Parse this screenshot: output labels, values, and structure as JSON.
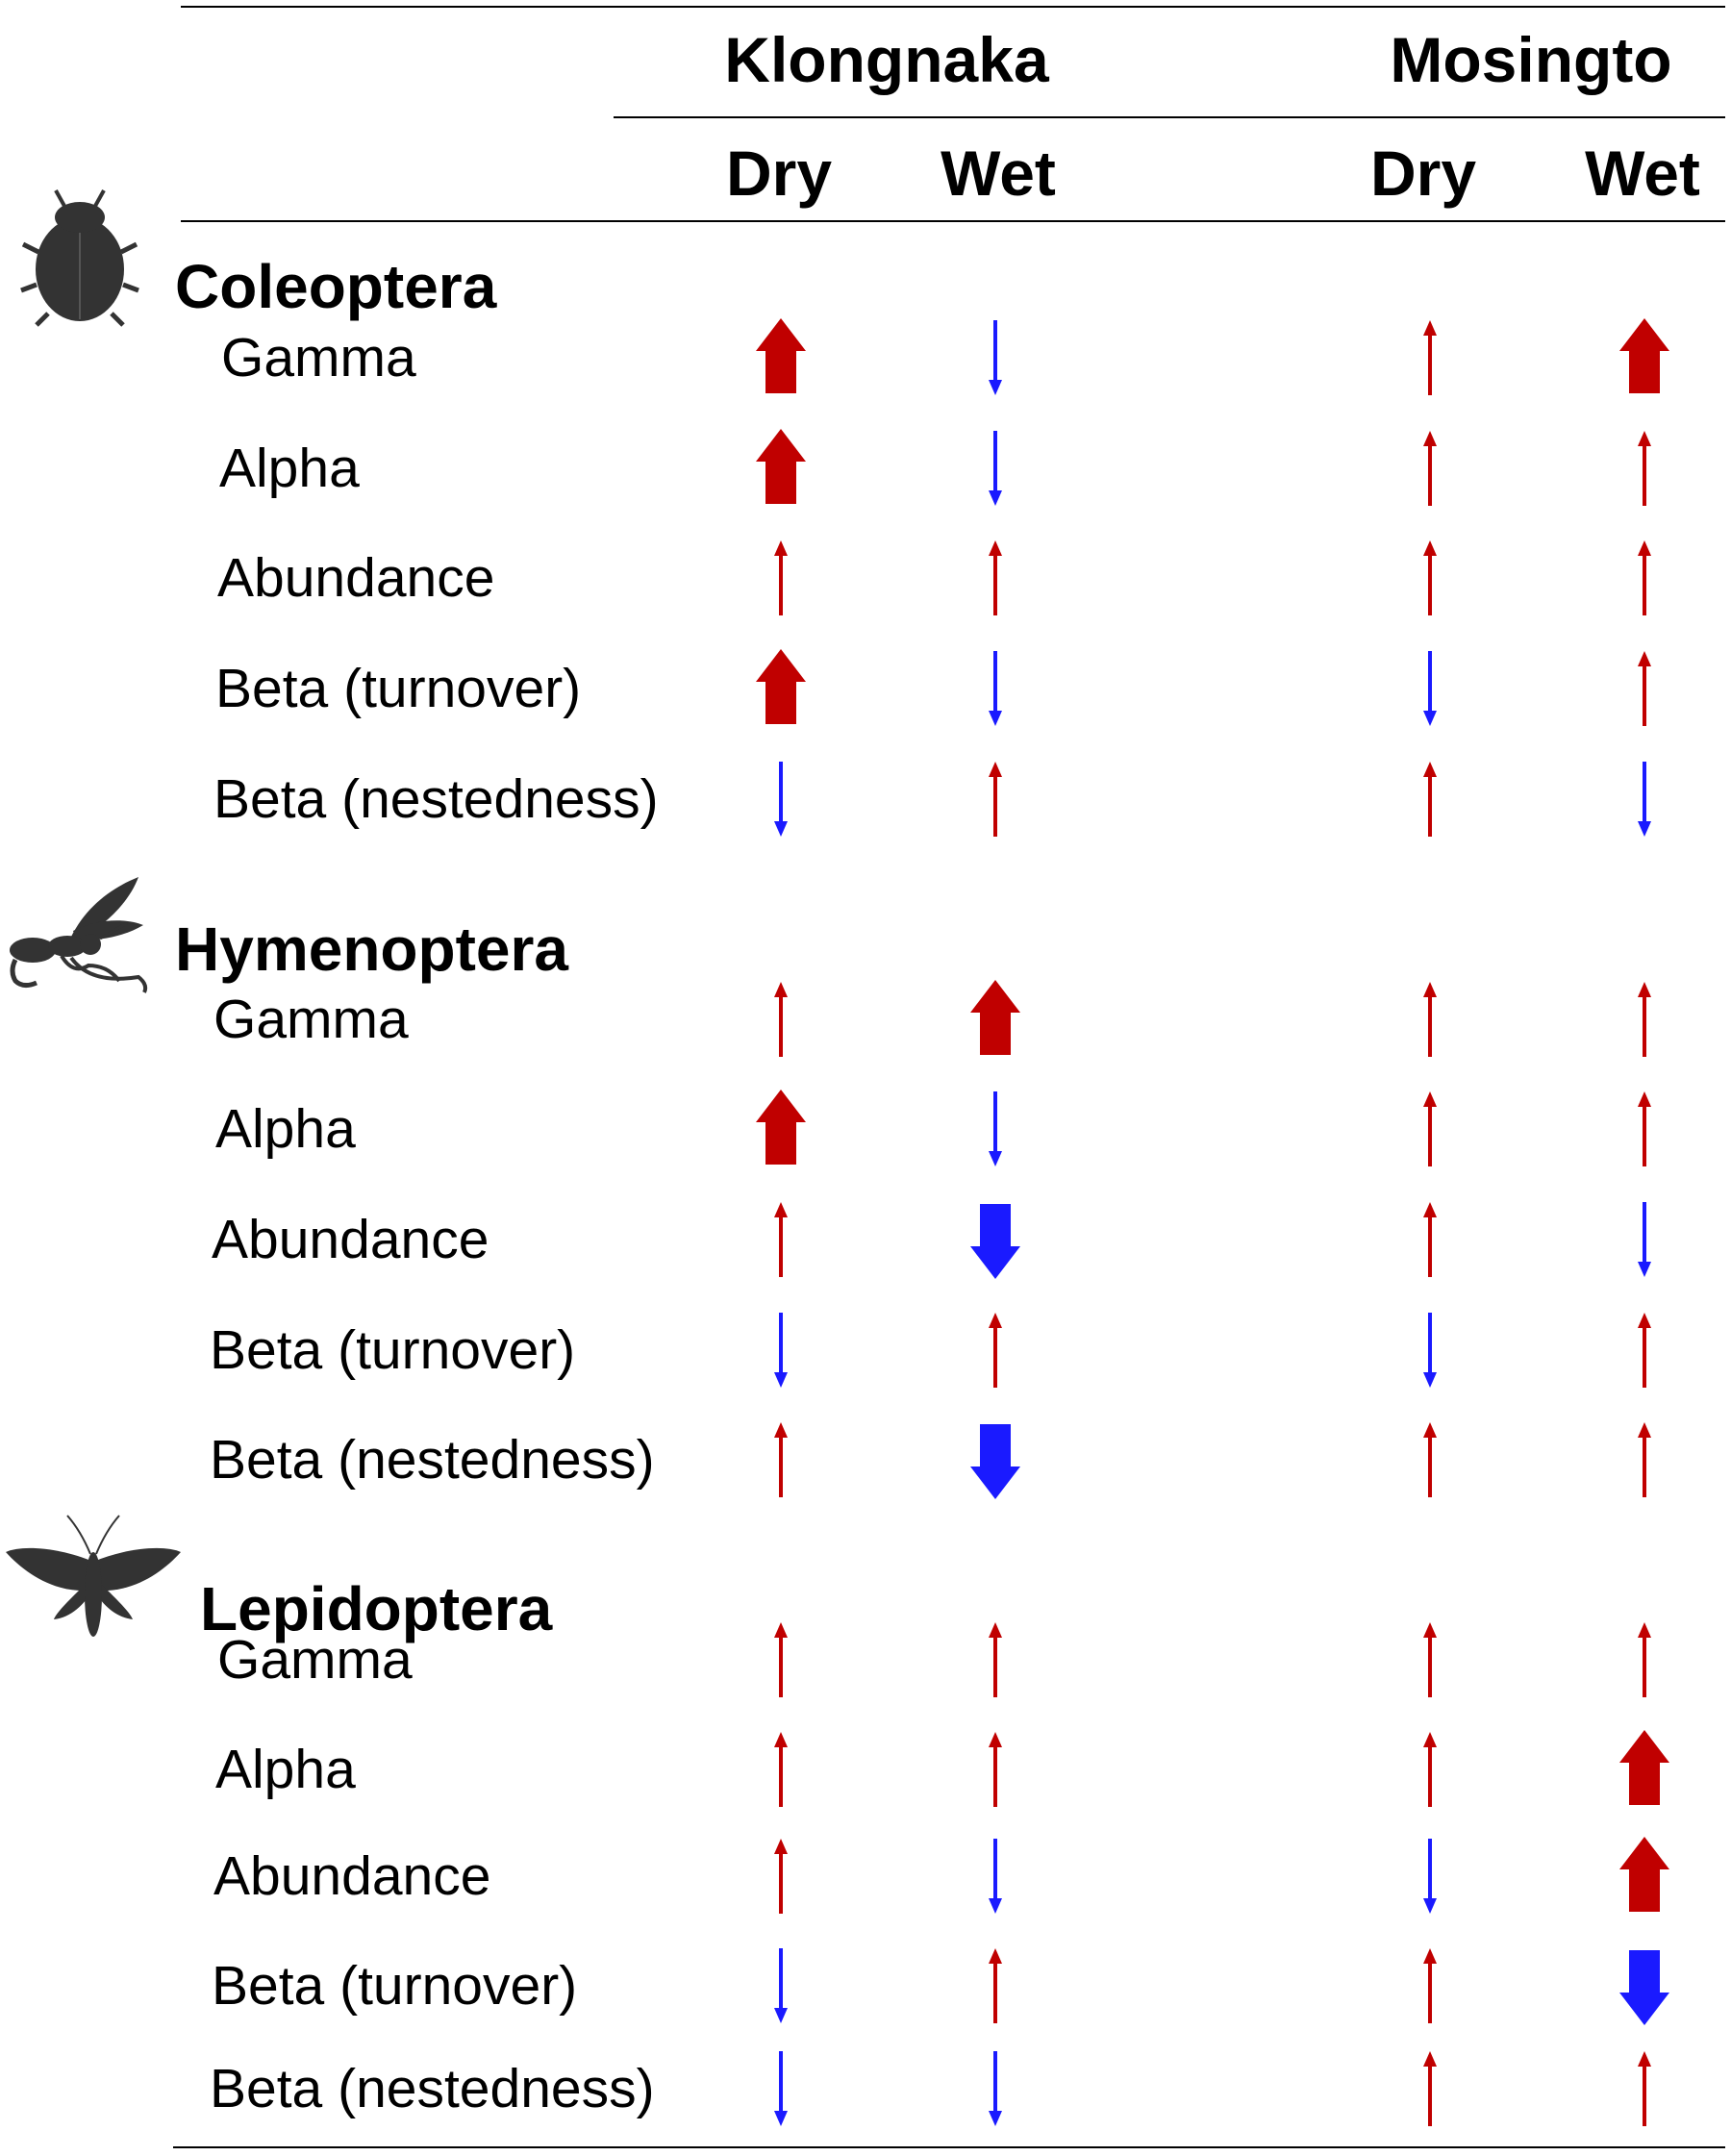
{
  "header": {
    "sites": [
      {
        "name": "Klongnaka",
        "seasons": [
          "Dry",
          "Wet"
        ]
      },
      {
        "name": "Mosingto",
        "seasons": [
          "Dry",
          "Wet"
        ]
      }
    ]
  },
  "colors": {
    "increase": "#c00000",
    "decrease": "#1a1aff",
    "silhouette": "#333333"
  },
  "groups": [
    {
      "name": "Coleoptera",
      "icon": "beetle-icon",
      "rows": [
        {
          "label": "Gamma",
          "cells": [
            {
              "dir": "up",
              "size": "large"
            },
            {
              "dir": "down",
              "size": "small"
            },
            {
              "dir": "up",
              "size": "small"
            },
            {
              "dir": "up",
              "size": "large"
            }
          ]
        },
        {
          "label": "Alpha",
          "cells": [
            {
              "dir": "up",
              "size": "large"
            },
            {
              "dir": "down",
              "size": "small"
            },
            {
              "dir": "up",
              "size": "small"
            },
            {
              "dir": "up",
              "size": "small"
            }
          ]
        },
        {
          "label": "Abundance",
          "cells": [
            {
              "dir": "up",
              "size": "small"
            },
            {
              "dir": "up",
              "size": "small"
            },
            {
              "dir": "up",
              "size": "small"
            },
            {
              "dir": "up",
              "size": "small"
            }
          ]
        },
        {
          "label": "Beta (turnover)",
          "cells": [
            {
              "dir": "up",
              "size": "large"
            },
            {
              "dir": "down",
              "size": "small"
            },
            {
              "dir": "down",
              "size": "small"
            },
            {
              "dir": "up",
              "size": "small"
            }
          ]
        },
        {
          "label": "Beta (nestedness)",
          "cells": [
            {
              "dir": "down",
              "size": "small"
            },
            {
              "dir": "up",
              "size": "small"
            },
            {
              "dir": "up",
              "size": "small"
            },
            {
              "dir": "down",
              "size": "small"
            }
          ]
        }
      ]
    },
    {
      "name": "Hymenoptera",
      "icon": "wasp-icon",
      "rows": [
        {
          "label": "Gamma",
          "cells": [
            {
              "dir": "up",
              "size": "small"
            },
            {
              "dir": "up",
              "size": "large"
            },
            {
              "dir": "up",
              "size": "small"
            },
            {
              "dir": "up",
              "size": "small"
            }
          ]
        },
        {
          "label": "Alpha",
          "cells": [
            {
              "dir": "up",
              "size": "large"
            },
            {
              "dir": "down",
              "size": "small"
            },
            {
              "dir": "up",
              "size": "small"
            },
            {
              "dir": "up",
              "size": "small"
            }
          ]
        },
        {
          "label": "Abundance",
          "cells": [
            {
              "dir": "up",
              "size": "small"
            },
            {
              "dir": "down",
              "size": "large"
            },
            {
              "dir": "up",
              "size": "small"
            },
            {
              "dir": "down",
              "size": "small"
            }
          ]
        },
        {
          "label": "Beta (turnover)",
          "cells": [
            {
              "dir": "down",
              "size": "small"
            },
            {
              "dir": "up",
              "size": "small"
            },
            {
              "dir": "down",
              "size": "small"
            },
            {
              "dir": "up",
              "size": "small"
            }
          ]
        },
        {
          "label": "Beta (nestedness)",
          "cells": [
            {
              "dir": "up",
              "size": "small"
            },
            {
              "dir": "down",
              "size": "large"
            },
            {
              "dir": "up",
              "size": "small"
            },
            {
              "dir": "up",
              "size": "small"
            }
          ]
        }
      ]
    },
    {
      "name": "Lepidoptera",
      "icon": "moth-icon",
      "rows": [
        {
          "label": "Gamma",
          "cells": [
            {
              "dir": "up",
              "size": "small"
            },
            {
              "dir": "up",
              "size": "small"
            },
            {
              "dir": "up",
              "size": "small"
            },
            {
              "dir": "up",
              "size": "small"
            }
          ]
        },
        {
          "label": "Alpha",
          "cells": [
            {
              "dir": "up",
              "size": "small"
            },
            {
              "dir": "up",
              "size": "small"
            },
            {
              "dir": "up",
              "size": "small"
            },
            {
              "dir": "up",
              "size": "large"
            }
          ]
        },
        {
          "label": "Abundance",
          "cells": [
            {
              "dir": "up",
              "size": "small"
            },
            {
              "dir": "down",
              "size": "small"
            },
            {
              "dir": "down",
              "size": "small"
            },
            {
              "dir": "up",
              "size": "large"
            }
          ]
        },
        {
          "label": "Beta (turnover)",
          "cells": [
            {
              "dir": "down",
              "size": "small"
            },
            {
              "dir": "up",
              "size": "small"
            },
            {
              "dir": "up",
              "size": "small"
            },
            {
              "dir": "down",
              "size": "large"
            }
          ]
        },
        {
          "label": "Beta (nestedness)",
          "cells": [
            {
              "dir": "down",
              "size": "small"
            },
            {
              "dir": "down",
              "size": "small"
            },
            {
              "dir": "up",
              "size": "small"
            },
            {
              "dir": "up",
              "size": "small"
            }
          ]
        }
      ]
    }
  ]
}
